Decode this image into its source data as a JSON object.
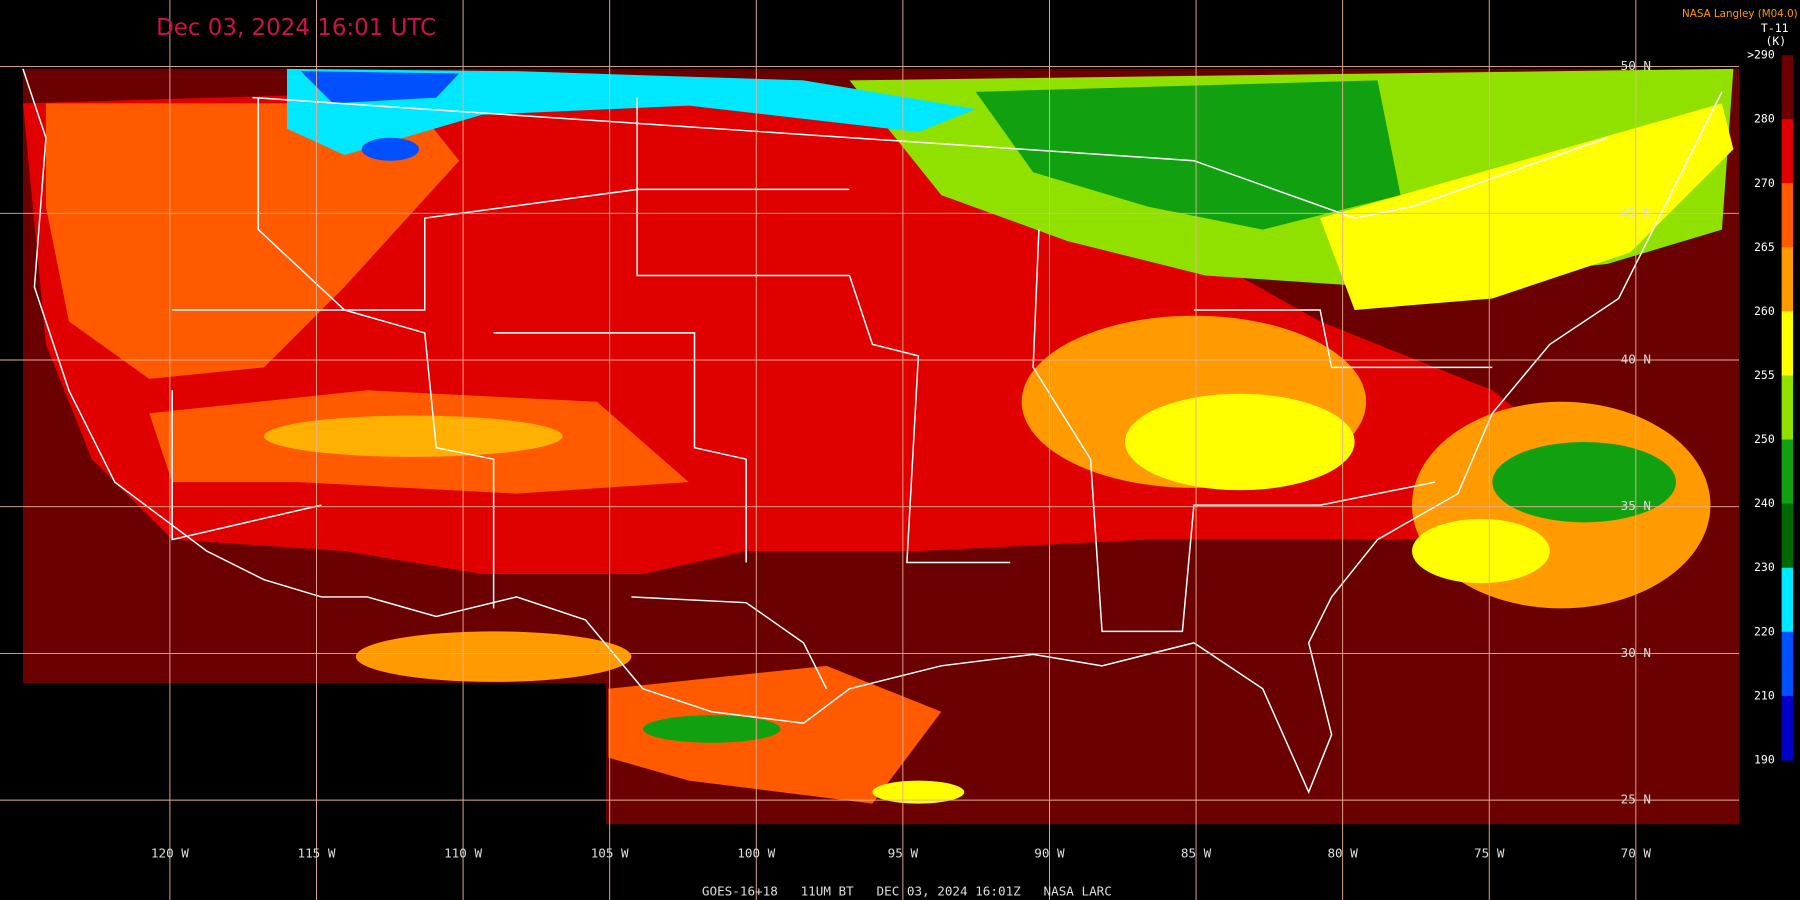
{
  "header": {
    "timestamp": "Dec 03, 2024 16:01 UTC",
    "credit": "NASA Langley (M04.0)",
    "product": "T-11",
    "unit": "(K)"
  },
  "colorbar": {
    "labels": [
      ">290",
      "280",
      "270",
      "265",
      "260",
      "255",
      "250",
      "240",
      "230",
      "220",
      "210",
      "190"
    ],
    "colors": [
      "#6a0000",
      "#e00000",
      "#ff5a00",
      "#ff9a00",
      "#ffff00",
      "#90e000",
      "#10a010",
      "#006800",
      "#00e8ff",
      "#0050ff",
      "#0000c8",
      "#9050e0"
    ]
  },
  "grid": {
    "latitudes": [
      "50 N",
      "45 N",
      "40 N",
      "35 N",
      "30 N",
      "25 N"
    ],
    "longitudes": [
      "120 W",
      "115 W",
      "110 W",
      "105 W",
      "100 W",
      "95 W",
      "90 W",
      "85 W",
      "80 W",
      "75 W",
      "70 W"
    ]
  },
  "footer": "GOES-16+18   11UM BT   DEC 03, 2024 16:01Z   NASA LARC"
}
